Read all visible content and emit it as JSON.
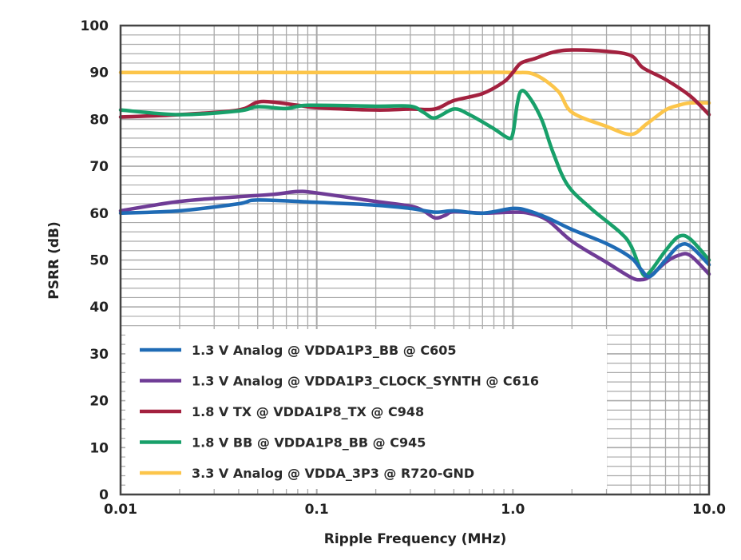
{
  "chart_data": {
    "type": "line",
    "xlabel": "Ripple Frequency (MHz)",
    "ylabel": "PSRR (dB)",
    "xscale": "log",
    "xlim": [
      0.01,
      10.0
    ],
    "ylim": [
      0,
      100
    ],
    "x_ticks": [
      "0.01",
      "0.1",
      "1.0",
      "10.0"
    ],
    "y_ticks": [
      "0",
      "10",
      "20",
      "30",
      "40",
      "50",
      "60",
      "70",
      "80",
      "90",
      "100"
    ],
    "grid": true,
    "legend_position": "bottom-left",
    "series": [
      {
        "name": "1.3 V Analog @ VDDA1P3_BB @ C605",
        "color": "#1f6bb5",
        "x": [
          0.01,
          0.02,
          0.04,
          0.05,
          0.1,
          0.2,
          0.3,
          0.4,
          0.5,
          0.7,
          1.0,
          1.2,
          1.5,
          2,
          3,
          4,
          4.5,
          5,
          6,
          7,
          8,
          10
        ],
        "y": [
          60,
          60.5,
          62,
          62.8,
          62.3,
          61.7,
          61,
          60.2,
          60.5,
          60,
          61,
          60.5,
          59,
          56.5,
          53.5,
          50.5,
          48,
          46.5,
          50,
          53,
          53,
          49
        ]
      },
      {
        "name": "1.3 V Analog @ VDDA1P3_CLOCK_SYNTH @ C616",
        "color": "#6f3c96",
        "x": [
          0.01,
          0.02,
          0.04,
          0.06,
          0.08,
          0.1,
          0.2,
          0.3,
          0.35,
          0.4,
          0.45,
          0.5,
          0.7,
          1.0,
          1.2,
          1.5,
          2,
          3,
          4,
          4.5,
          5,
          6,
          7,
          8,
          10
        ],
        "y": [
          60.5,
          62.5,
          63.5,
          64,
          64.6,
          64.3,
          62.5,
          61.5,
          60.5,
          59,
          59.5,
          60.3,
          60,
          60.2,
          60,
          58.5,
          54,
          49.5,
          46.3,
          45.8,
          46.5,
          49.5,
          51,
          51,
          47
        ]
      },
      {
        "name": "1.8 V TX @ VDDA1P8_TX @ C948",
        "color": "#a3213f",
        "x": [
          0.01,
          0.02,
          0.04,
          0.052,
          0.08,
          0.1,
          0.2,
          0.3,
          0.4,
          0.5,
          0.7,
          0.9,
          1.0,
          1.1,
          1.3,
          1.6,
          2.0,
          3,
          4,
          4.6,
          6,
          8,
          10
        ],
        "y": [
          80.5,
          81,
          82,
          83.8,
          83,
          82.5,
          82,
          82.2,
          82.2,
          84,
          85.5,
          88,
          90,
          92,
          93,
          94.3,
          94.8,
          94.5,
          93.6,
          91,
          88.5,
          85,
          81
        ]
      },
      {
        "name": "1.8 V BB @ VDDA1P8_BB @ C945",
        "color": "#18a06a",
        "x": [
          0.01,
          0.02,
          0.04,
          0.05,
          0.07,
          0.09,
          0.2,
          0.3,
          0.35,
          0.4,
          0.5,
          0.6,
          0.8,
          0.95,
          1.0,
          1.05,
          1.1,
          1.2,
          1.4,
          1.6,
          1.9,
          2.5,
          3.5,
          4.0,
          4.6,
          5,
          6,
          7,
          8,
          10
        ],
        "y": [
          82,
          81,
          81.8,
          82.7,
          82.3,
          83,
          82.8,
          82.8,
          81.5,
          80.3,
          82.2,
          81,
          78,
          76,
          77,
          83,
          86,
          85,
          80,
          73,
          66,
          61,
          56,
          53,
          47,
          47.5,
          52,
          55,
          54.5,
          50
        ]
      },
      {
        "name": "3.3 V Analog @ VDDA_3P3 @ R720-GND",
        "color": "#fcc54a",
        "x": [
          0.01,
          0.1,
          0.5,
          1.0,
          1.3,
          1.7,
          2.0,
          3.0,
          4.0,
          4.8,
          6,
          7,
          8,
          10
        ],
        "y": [
          90,
          90,
          90,
          90,
          89.5,
          86,
          81.5,
          78.5,
          76.8,
          79,
          82,
          83,
          83.5,
          83.5
        ]
      }
    ]
  }
}
